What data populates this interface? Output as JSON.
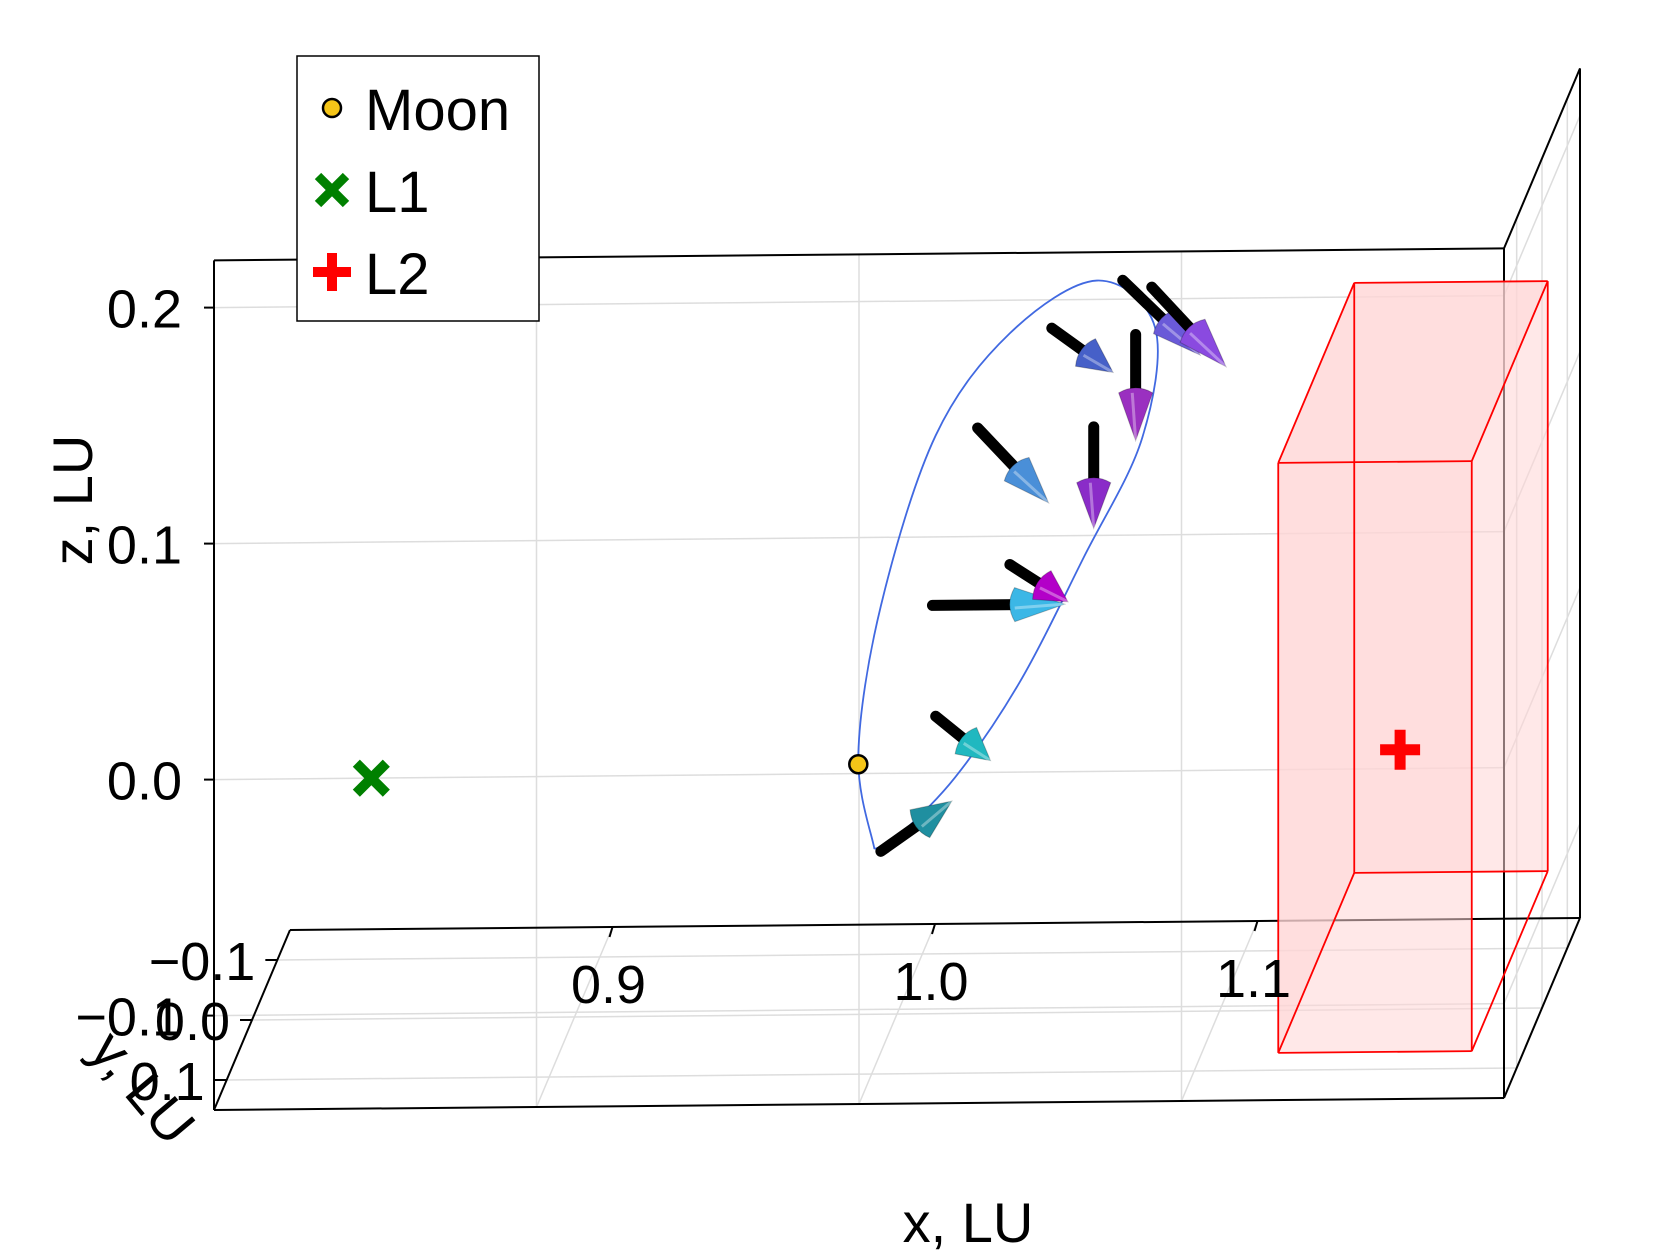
{
  "chart_data": {
    "type": "scatter",
    "projection": "3d",
    "title": "",
    "xlabel": "x, LU",
    "ylabel": "y, LU",
    "zlabel": "z, LU",
    "xlim": [
      0.8,
      1.2
    ],
    "ylim": [
      -0.15,
      0.15
    ],
    "zlim": [
      -0.14,
      0.22
    ],
    "x_ticks": [
      0.9,
      1.0,
      1.1
    ],
    "x_tick_labels": [
      "0.9",
      "1.0",
      "1.1"
    ],
    "y_ticks": [
      -0.1,
      0.0,
      0.1
    ],
    "y_tick_labels": [
      "−0.1",
      "0.0",
      "0.1"
    ],
    "z_ticks": [
      -0.1,
      0.0,
      0.1,
      0.2
    ],
    "z_tick_labels": [
      "−0.1",
      "0.0",
      "0.1",
      "0.2"
    ],
    "grid": true,
    "legend_position": "top-left",
    "legend": [
      {
        "name": "Moon",
        "marker": "circle",
        "color": "#f5c518"
      },
      {
        "name": "L1",
        "marker": "x",
        "color": "#008000"
      },
      {
        "name": "L2",
        "marker": "cross",
        "color": "#ff0000"
      }
    ],
    "points": [
      {
        "name": "Moon",
        "x": 0.988,
        "y": 0.0,
        "z": -0.034
      },
      {
        "name": "L1",
        "x": 0.837,
        "y": 0.0,
        "z": -0.038
      },
      {
        "name": "L2",
        "x": 1.156,
        "y": 0.0,
        "z": -0.03
      }
    ],
    "orbit": {
      "color": "#4169e1",
      "x": [
        0.993,
        0.988,
        0.995,
        1.012,
        1.035,
        1.062,
        1.08,
        1.076,
        1.058,
        1.038,
        1.018,
        1.0,
        0.993
      ],
      "y": [
        0.0,
        0.0,
        0.0,
        0.0,
        0.0,
        0.0,
        0.0,
        0.0,
        0.0,
        0.0,
        0.0,
        0.0,
        0.0
      ],
      "z": [
        -0.07,
        -0.03,
        0.033,
        0.105,
        0.148,
        0.17,
        0.15,
        0.103,
        0.053,
        0.0,
        -0.04,
        -0.065,
        -0.07
      ]
    },
    "arrows": [
      {
        "x": 0.995,
        "y": 0.0,
        "z": -0.071,
        "dx": 0.022,
        "dz": 0.021,
        "color": "#1f8fa0"
      },
      {
        "x": 1.012,
        "y": 0.0,
        "z": -0.014,
        "dx": 0.017,
        "dz": -0.019,
        "color": "#20b8c0"
      },
      {
        "x": 1.011,
        "y": 0.0,
        "z": 0.033,
        "dx": 0.041,
        "dz": 0.0,
        "color": "#3bb7e6"
      },
      {
        "x": 1.035,
        "y": 0.0,
        "z": 0.05,
        "dx": 0.018,
        "dz": -0.016,
        "color": "#b300c8"
      },
      {
        "x": 1.025,
        "y": 0.0,
        "z": 0.108,
        "dx": 0.022,
        "dz": -0.032,
        "color": "#4a8fd8"
      },
      {
        "x": 1.061,
        "y": 0.0,
        "z": 0.108,
        "dx": 0.0,
        "dz": -0.043,
        "color": "#8a2cc8"
      },
      {
        "x": 1.048,
        "y": 0.0,
        "z": 0.15,
        "dx": 0.019,
        "dz": -0.019,
        "color": "#4660c8"
      },
      {
        "x": 1.074,
        "y": 0.0,
        "z": 0.147,
        "dx": 0.0,
        "dz": -0.045,
        "color": "#9a30c0"
      },
      {
        "x": 1.07,
        "y": 0.0,
        "z": 0.17,
        "dx": 0.024,
        "dz": -0.032,
        "color": "#6a5ad8"
      },
      {
        "x": 1.079,
        "y": 0.0,
        "z": 0.167,
        "dx": 0.023,
        "dz": -0.034,
        "color": "#8a4ae0"
      }
    ],
    "keep_out_box": {
      "color": "#ff0000",
      "fill": "#ffd6d6",
      "xlim": [
        1.13,
        1.19
      ],
      "ylim": [
        -0.15,
        0.15
      ],
      "zlim": [
        -0.12,
        0.13
      ]
    }
  }
}
